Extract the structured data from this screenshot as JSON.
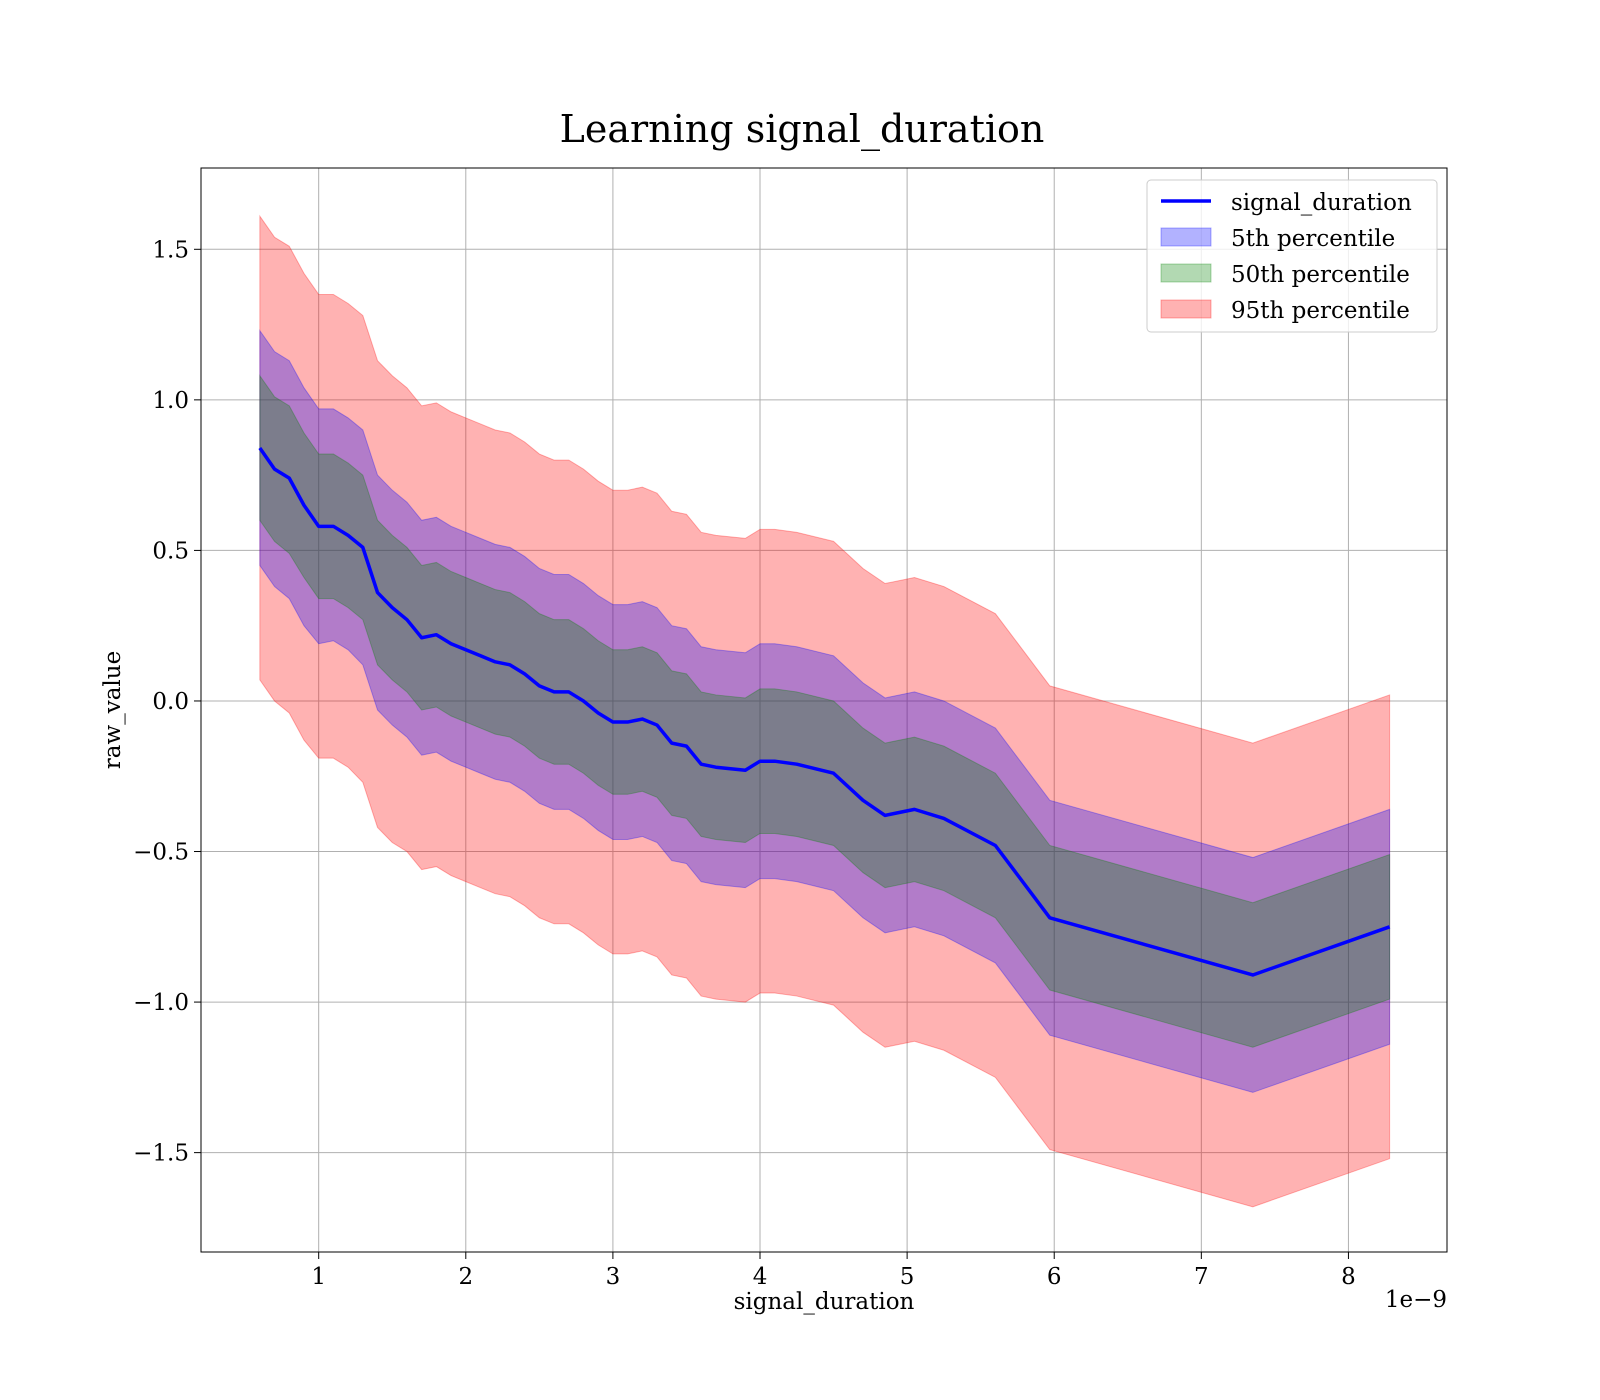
{
  "chart_data": {
    "type": "area",
    "title": "Learning signal_duration",
    "xlabel": "signal_duration",
    "ylabel": "raw_value",
    "x_offset_label": "1e−9",
    "x_scale": 1e-09,
    "xlim": [
      2e-10,
      8.67e-09
    ],
    "ylim": [
      -1.83,
      1.77
    ],
    "grid": true,
    "legend_position": "top-right",
    "x_ticks": [
      1e-09,
      2e-09,
      3e-09,
      4e-09,
      5e-09,
      6e-09,
      7e-09,
      8e-09
    ],
    "x_tick_labels": [
      "1",
      "2",
      "3",
      "4",
      "5",
      "6",
      "7",
      "8"
    ],
    "y_ticks": [
      1.5,
      1.0,
      0.5,
      0.0,
      -0.5,
      -1.0,
      -1.5
    ],
    "y_tick_labels": [
      "1.5",
      "1.0",
      "0.5",
      "0.0",
      "−0.5",
      "−1.0",
      "−1.5"
    ],
    "x": [
      6e-10,
      7e-10,
      8e-10,
      9e-10,
      1e-09,
      1.1e-09,
      1.2e-09,
      1.3e-09,
      1.4e-09,
      1.5e-09,
      1.6e-09,
      1.7e-09,
      1.8e-09,
      1.9e-09,
      2e-09,
      2.1e-09,
      2.2e-09,
      2.3e-09,
      2.4e-09,
      2.5e-09,
      2.6e-09,
      2.7e-09,
      2.8e-09,
      2.9e-09,
      3e-09,
      3.1e-09,
      3.2e-09,
      3.3e-09,
      3.4e-09,
      3.5e-09,
      3.6e-09,
      3.7e-09,
      3.9e-09,
      4e-09,
      4.1e-09,
      4.25e-09,
      4.5e-09,
      4.7e-09,
      4.85e-09,
      5.05e-09,
      5.25e-09,
      5.6e-09,
      5.97e-09,
      7.35e-09,
      8.28e-09
    ],
    "series": [
      {
        "name": "signal_duration",
        "values": [
          0.84,
          0.77,
          0.74,
          0.65,
          0.58,
          0.58,
          0.55,
          0.51,
          0.36,
          0.31,
          0.27,
          0.21,
          0.22,
          0.19,
          0.17,
          0.15,
          0.13,
          0.12,
          0.09,
          0.05,
          0.03,
          0.03,
          0.0,
          -0.04,
          -0.07,
          -0.07,
          -0.06,
          -0.08,
          -0.14,
          -0.15,
          -0.21,
          -0.22,
          -0.23,
          -0.2,
          -0.2,
          -0.21,
          -0.24,
          -0.33,
          -0.38,
          -0.36,
          -0.39,
          -0.48,
          -0.72,
          -0.91,
          -0.75
        ]
      }
    ],
    "bands": [
      {
        "name": "5th percentile",
        "color": "#0000ff",
        "lower": [
          0.45,
          0.38,
          0.34,
          0.25,
          0.19,
          0.2,
          0.17,
          0.12,
          -0.03,
          -0.08,
          -0.12,
          -0.18,
          -0.17,
          -0.2,
          -0.22,
          -0.24,
          -0.26,
          -0.27,
          -0.3,
          -0.34,
          -0.36,
          -0.36,
          -0.39,
          -0.43,
          -0.46,
          -0.46,
          -0.45,
          -0.47,
          -0.53,
          -0.54,
          -0.6,
          -0.61,
          -0.62,
          -0.59,
          -0.59,
          -0.6,
          -0.63,
          -0.72,
          -0.77,
          -0.75,
          -0.78,
          -0.87,
          -1.11,
          -1.3,
          -1.14
        ],
        "upper": [
          1.23,
          1.16,
          1.13,
          1.04,
          0.97,
          0.97,
          0.94,
          0.9,
          0.75,
          0.7,
          0.66,
          0.6,
          0.61,
          0.58,
          0.56,
          0.54,
          0.52,
          0.51,
          0.48,
          0.44,
          0.42,
          0.42,
          0.39,
          0.35,
          0.32,
          0.32,
          0.33,
          0.31,
          0.25,
          0.24,
          0.18,
          0.17,
          0.16,
          0.19,
          0.19,
          0.18,
          0.15,
          0.06,
          0.01,
          0.03,
          0.0,
          -0.09,
          -0.33,
          -0.52,
          -0.36
        ]
      },
      {
        "name": "50th percentile",
        "color": "#008000",
        "lower": [
          0.6,
          0.53,
          0.49,
          0.41,
          0.34,
          0.34,
          0.31,
          0.27,
          0.12,
          0.07,
          0.03,
          -0.03,
          -0.02,
          -0.05,
          -0.07,
          -0.09,
          -0.11,
          -0.12,
          -0.15,
          -0.19,
          -0.21,
          -0.21,
          -0.24,
          -0.28,
          -0.31,
          -0.31,
          -0.3,
          -0.32,
          -0.38,
          -0.39,
          -0.45,
          -0.46,
          -0.47,
          -0.44,
          -0.44,
          -0.45,
          -0.48,
          -0.57,
          -0.62,
          -0.6,
          -0.63,
          -0.72,
          -0.96,
          -1.15,
          -0.99
        ],
        "upper": [
          1.08,
          1.01,
          0.98,
          0.89,
          0.82,
          0.82,
          0.79,
          0.75,
          0.6,
          0.55,
          0.51,
          0.45,
          0.46,
          0.43,
          0.41,
          0.39,
          0.37,
          0.36,
          0.33,
          0.29,
          0.27,
          0.27,
          0.24,
          0.2,
          0.17,
          0.17,
          0.18,
          0.16,
          0.1,
          0.09,
          0.03,
          0.02,
          0.01,
          0.04,
          0.04,
          0.03,
          0.0,
          -0.09,
          -0.14,
          -0.12,
          -0.15,
          -0.24,
          -0.48,
          -0.67,
          -0.51
        ]
      },
      {
        "name": "95th percentile",
        "color": "#ff0000",
        "lower": [
          0.07,
          0.0,
          -0.04,
          -0.13,
          -0.19,
          -0.19,
          -0.22,
          -0.27,
          -0.42,
          -0.47,
          -0.5,
          -0.56,
          -0.55,
          -0.58,
          -0.6,
          -0.62,
          -0.64,
          -0.65,
          -0.68,
          -0.72,
          -0.74,
          -0.74,
          -0.77,
          -0.81,
          -0.84,
          -0.84,
          -0.83,
          -0.85,
          -0.91,
          -0.92,
          -0.98,
          -0.99,
          -1.0,
          -0.97,
          -0.97,
          -0.98,
          -1.01,
          -1.1,
          -1.15,
          -1.13,
          -1.16,
          -1.25,
          -1.49,
          -1.68,
          -1.52
        ],
        "upper": [
          1.61,
          1.54,
          1.51,
          1.42,
          1.35,
          1.35,
          1.32,
          1.28,
          1.13,
          1.08,
          1.04,
          0.98,
          0.99,
          0.96,
          0.94,
          0.92,
          0.9,
          0.89,
          0.86,
          0.82,
          0.8,
          0.8,
          0.77,
          0.73,
          0.7,
          0.7,
          0.71,
          0.69,
          0.63,
          0.62,
          0.56,
          0.55,
          0.54,
          0.57,
          0.57,
          0.56,
          0.53,
          0.44,
          0.39,
          0.41,
          0.38,
          0.29,
          0.05,
          -0.14,
          0.02
        ]
      }
    ],
    "legend": [
      {
        "label": "signal_duration",
        "kind": "line",
        "color": "#0000ff"
      },
      {
        "label": "5th percentile",
        "kind": "patch",
        "color": "#0000ff"
      },
      {
        "label": "50th percentile",
        "kind": "patch",
        "color": "#008000"
      },
      {
        "label": "95th percentile",
        "kind": "patch",
        "color": "#ff0000"
      }
    ]
  }
}
